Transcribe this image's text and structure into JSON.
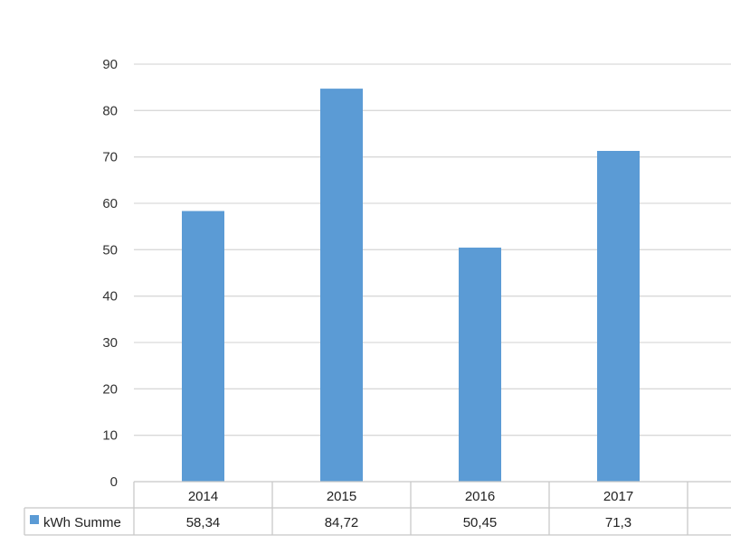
{
  "chart_data": {
    "type": "bar",
    "categories": [
      "2014",
      "2015",
      "2016",
      "2017"
    ],
    "series": [
      {
        "name": "kWh Summe",
        "values": [
          58.34,
          84.72,
          50.45,
          71.3
        ],
        "display_values": [
          "58,34",
          "84,72",
          "50,45",
          "71,3"
        ]
      }
    ],
    "title": "",
    "xlabel": "",
    "ylabel": "",
    "ylim": [
      0,
      90
    ],
    "yticks": [
      "0",
      "10",
      "20",
      "30",
      "40",
      "50",
      "60",
      "70",
      "80",
      "90"
    ],
    "grid": true,
    "legend": "data-table-left",
    "colors": {
      "bar": "#5b9bd5",
      "grid": "#d9d9d9",
      "table_border": "#c8c8c8"
    }
  }
}
